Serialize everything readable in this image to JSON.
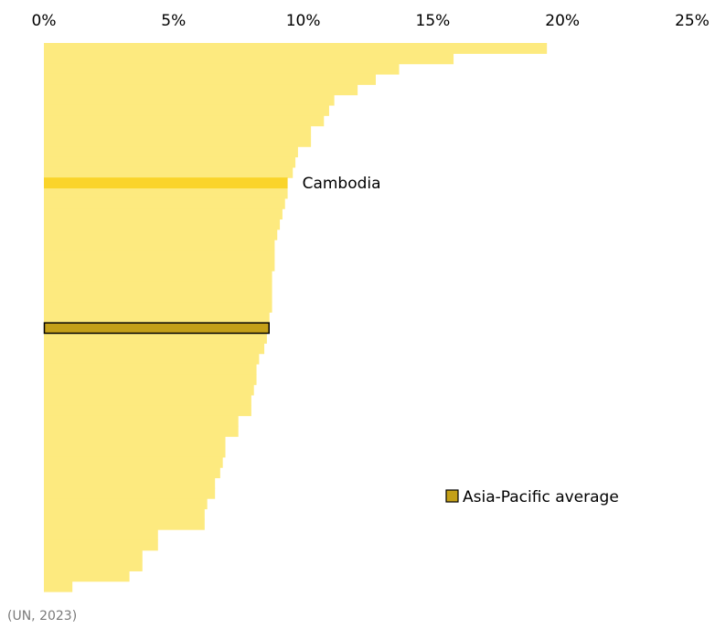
{
  "chart_data": {
    "type": "bar",
    "orientation": "horizontal",
    "source": "(UN, 2023)",
    "xlim": [
      0,
      25
    ],
    "ticks": [
      {
        "value": 0,
        "label": "0%"
      },
      {
        "value": 5,
        "label": "5%"
      },
      {
        "value": 10,
        "label": "10%"
      },
      {
        "value": 15,
        "label": "15%"
      },
      {
        "value": 20,
        "label": "20%"
      },
      {
        "value": 25,
        "label": "25%"
      }
    ],
    "values": [
      19.4,
      15.8,
      13.7,
      12.8,
      12.1,
      11.2,
      11.0,
      10.8,
      10.3,
      10.3,
      9.8,
      9.7,
      9.6,
      9.4,
      9.4,
      9.3,
      9.2,
      9.1,
      9.0,
      8.9,
      8.9,
      8.9,
      8.8,
      8.8,
      8.8,
      8.8,
      8.7,
      8.7,
      8.6,
      8.5,
      8.3,
      8.2,
      8.2,
      8.1,
      8.0,
      8.0,
      7.5,
      7.5,
      7.0,
      7.0,
      6.9,
      6.8,
      6.6,
      6.6,
      6.3,
      6.2,
      6.2,
      4.4,
      4.4,
      3.8,
      3.8,
      3.3,
      1.1
    ],
    "highlight": {
      "index": 13,
      "label": "Cambodia"
    },
    "average_index": 27,
    "colors": {
      "bar": "#fdea7f",
      "highlight": "#fad42a",
      "average": "#c4a018",
      "average_border": "#000000"
    },
    "legend": {
      "label": "Asia-Pacific average",
      "position": "center-right"
    }
  }
}
